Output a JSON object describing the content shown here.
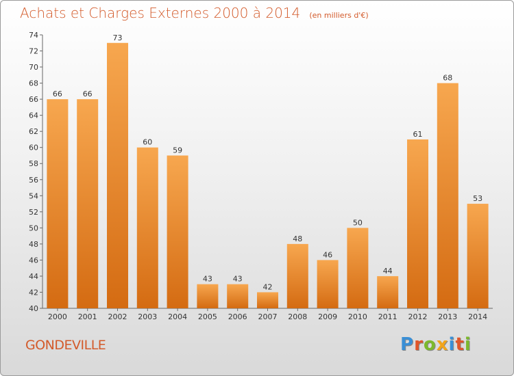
{
  "header": {
    "title": "Achats et Charges Externes 2000 à 2014",
    "subtitle": "(en milliers d'€)"
  },
  "footer": {
    "city": "GONDEVILLE",
    "logo_text": "Proxiti"
  },
  "chart_data": {
    "type": "bar",
    "categories": [
      "2000",
      "2001",
      "2002",
      "2003",
      "2004",
      "2005",
      "2006",
      "2007",
      "2008",
      "2009",
      "2010",
      "2011",
      "2012",
      "2013",
      "2014"
    ],
    "values": [
      66,
      66,
      73,
      60,
      59,
      43,
      43,
      42,
      48,
      46,
      50,
      44,
      61,
      68,
      53
    ],
    "ylim": [
      40,
      74
    ],
    "yticks": [
      40,
      42,
      44,
      46,
      48,
      50,
      52,
      54,
      56,
      58,
      60,
      62,
      64,
      66,
      68,
      70,
      72,
      74
    ],
    "grid": false,
    "colors": {
      "bar_light": "#f7a74f",
      "bar_dark": "#d46b12",
      "text": "#333333"
    }
  }
}
